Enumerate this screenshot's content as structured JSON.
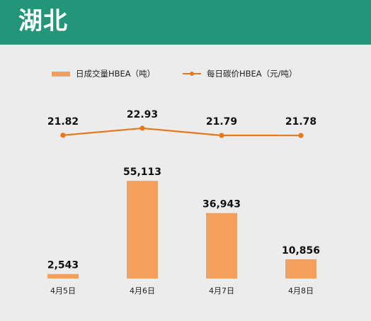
{
  "header": {
    "title": "湖北"
  },
  "colors": {
    "header_bg": "#23967a",
    "bar": "#f4a05c",
    "line": "#e8781c"
  },
  "chart_data": {
    "type": "bar",
    "categories": [
      "4月5日",
      "4月6日",
      "4月7日",
      "4月8日"
    ],
    "series": [
      {
        "name": "日成交量HBEA（吨）",
        "kind": "bar",
        "values": [
          2543,
          55113,
          36943,
          10856
        ],
        "labels": [
          "2,543",
          "55,113",
          "36,943",
          "10,856"
        ]
      },
      {
        "name": "每日碳价HBEA（元/吨）",
        "kind": "line",
        "values": [
          21.82,
          22.93,
          21.79,
          21.78
        ],
        "labels": [
          "21.82",
          "22.93",
          "21.79",
          "21.78"
        ]
      }
    ],
    "legend_position": "top",
    "grid": false
  }
}
